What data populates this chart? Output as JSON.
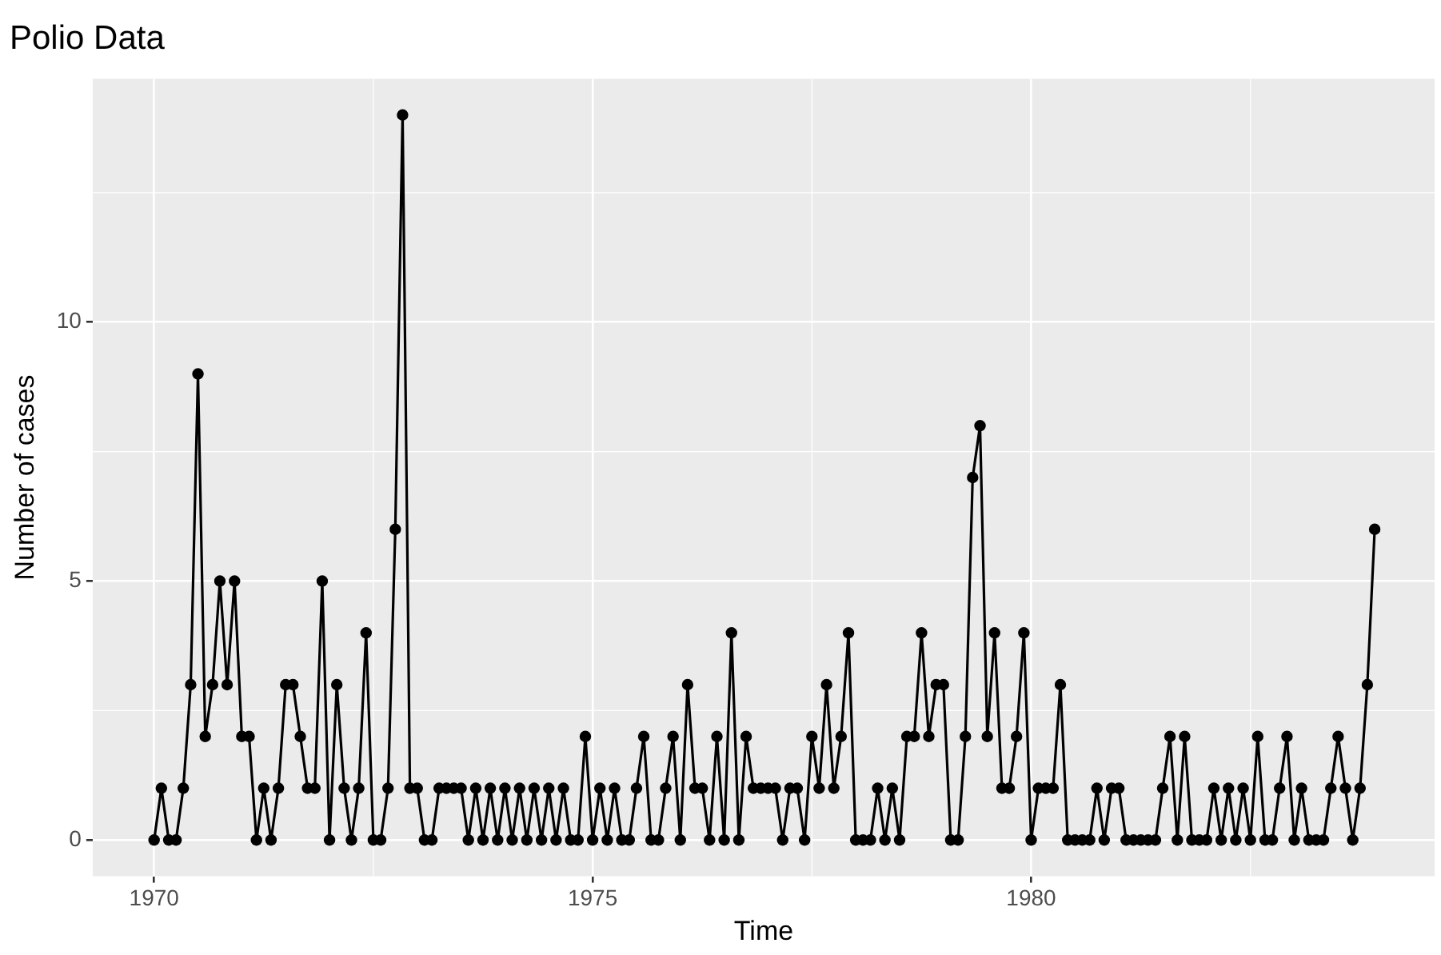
{
  "chart_data": {
    "type": "line",
    "title": "Polio Data",
    "xlabel": "Time",
    "ylabel": "Number of cases",
    "x": [
      1970.0,
      1970.083,
      1970.167,
      1970.25,
      1970.333,
      1970.417,
      1970.5,
      1970.583,
      1970.667,
      1970.75,
      1970.833,
      1970.917,
      1971.0,
      1971.083,
      1971.167,
      1971.25,
      1971.333,
      1971.417,
      1971.5,
      1971.583,
      1971.667,
      1971.75,
      1971.833,
      1971.917,
      1972.0,
      1972.083,
      1972.167,
      1972.25,
      1972.333,
      1972.417,
      1972.5,
      1972.583,
      1972.667,
      1972.75,
      1972.833,
      1972.917,
      1973.0,
      1973.083,
      1973.167,
      1973.25,
      1973.333,
      1973.417,
      1973.5,
      1973.583,
      1973.667,
      1973.75,
      1973.833,
      1973.917,
      1974.0,
      1974.083,
      1974.167,
      1974.25,
      1974.333,
      1974.417,
      1974.5,
      1974.583,
      1974.667,
      1974.75,
      1974.833,
      1974.917,
      1975.0,
      1975.083,
      1975.167,
      1975.25,
      1975.333,
      1975.417,
      1975.5,
      1975.583,
      1975.667,
      1975.75,
      1975.833,
      1975.917,
      1976.0,
      1976.083,
      1976.167,
      1976.25,
      1976.333,
      1976.417,
      1976.5,
      1976.583,
      1976.667,
      1976.75,
      1976.833,
      1976.917,
      1977.0,
      1977.083,
      1977.167,
      1977.25,
      1977.333,
      1977.417,
      1977.5,
      1977.583,
      1977.667,
      1977.75,
      1977.833,
      1977.917,
      1978.0,
      1978.083,
      1978.167,
      1978.25,
      1978.333,
      1978.417,
      1978.5,
      1978.583,
      1978.667,
      1978.75,
      1978.833,
      1978.917,
      1979.0,
      1979.083,
      1979.167,
      1979.25,
      1979.333,
      1979.417,
      1979.5,
      1979.583,
      1979.667,
      1979.75,
      1979.833,
      1979.917,
      1980.0,
      1980.083,
      1980.167,
      1980.25,
      1980.333,
      1980.417,
      1980.5,
      1980.583,
      1980.667,
      1980.75,
      1980.833,
      1980.917,
      1981.0,
      1981.083,
      1981.167,
      1981.25,
      1981.333,
      1981.417,
      1981.5,
      1981.583,
      1981.667,
      1981.75,
      1981.833,
      1981.917,
      1982.0,
      1982.083,
      1982.167,
      1982.25,
      1982.333,
      1982.417,
      1982.5,
      1982.583,
      1982.667,
      1982.75,
      1982.833,
      1982.917,
      1983.0,
      1983.083,
      1983.167,
      1983.25,
      1983.333,
      1983.417,
      1983.5,
      1983.583,
      1983.667,
      1983.75,
      1983.833,
      1983.917
    ],
    "series": [
      {
        "color": "#000000",
        "values": [
          0,
          1,
          0,
          0,
          1,
          3,
          9,
          2,
          3,
          5,
          3,
          5,
          2,
          2,
          0,
          1,
          0,
          1,
          3,
          3,
          2,
          1,
          1,
          5,
          0,
          3,
          1,
          0,
          1,
          4,
          0,
          0,
          1,
          6,
          14,
          1,
          1,
          0,
          0,
          1,
          1,
          1,
          1,
          0,
          1,
          0,
          1,
          0,
          1,
          0,
          1,
          0,
          1,
          0,
          1,
          0,
          1,
          0,
          0,
          2,
          0,
          1,
          0,
          1,
          0,
          0,
          1,
          2,
          0,
          0,
          1,
          2,
          0,
          3,
          1,
          1,
          0,
          2,
          0,
          4,
          0,
          2,
          1,
          1,
          1,
          1,
          0,
          1,
          1,
          0,
          2,
          1,
          3,
          1,
          2,
          4,
          0,
          0,
          0,
          1,
          0,
          1,
          0,
          2,
          2,
          4,
          2,
          3,
          3,
          0,
          0,
          2,
          7,
          8,
          2,
          4,
          1,
          1,
          2,
          4,
          0,
          1,
          1,
          1,
          3,
          0,
          0,
          0,
          0,
          1,
          0,
          1,
          1,
          0,
          0,
          0,
          0,
          0,
          1,
          2,
          0,
          2,
          0,
          0,
          0,
          1,
          0,
          1,
          0,
          1,
          0,
          2,
          0,
          0,
          1,
          2,
          0,
          1,
          0,
          0,
          0,
          1,
          2,
          1,
          0,
          1,
          3,
          6
        ]
      }
    ],
    "xlim": [
      1969.3,
      1984.6
    ],
    "xticks": [
      1970,
      1975,
      1980
    ],
    "ylim": [
      -0.7,
      14.7
    ],
    "yticks": [
      0,
      5,
      10
    ],
    "grid": true,
    "legend": false,
    "marker": "circle",
    "line_style": "solid"
  }
}
